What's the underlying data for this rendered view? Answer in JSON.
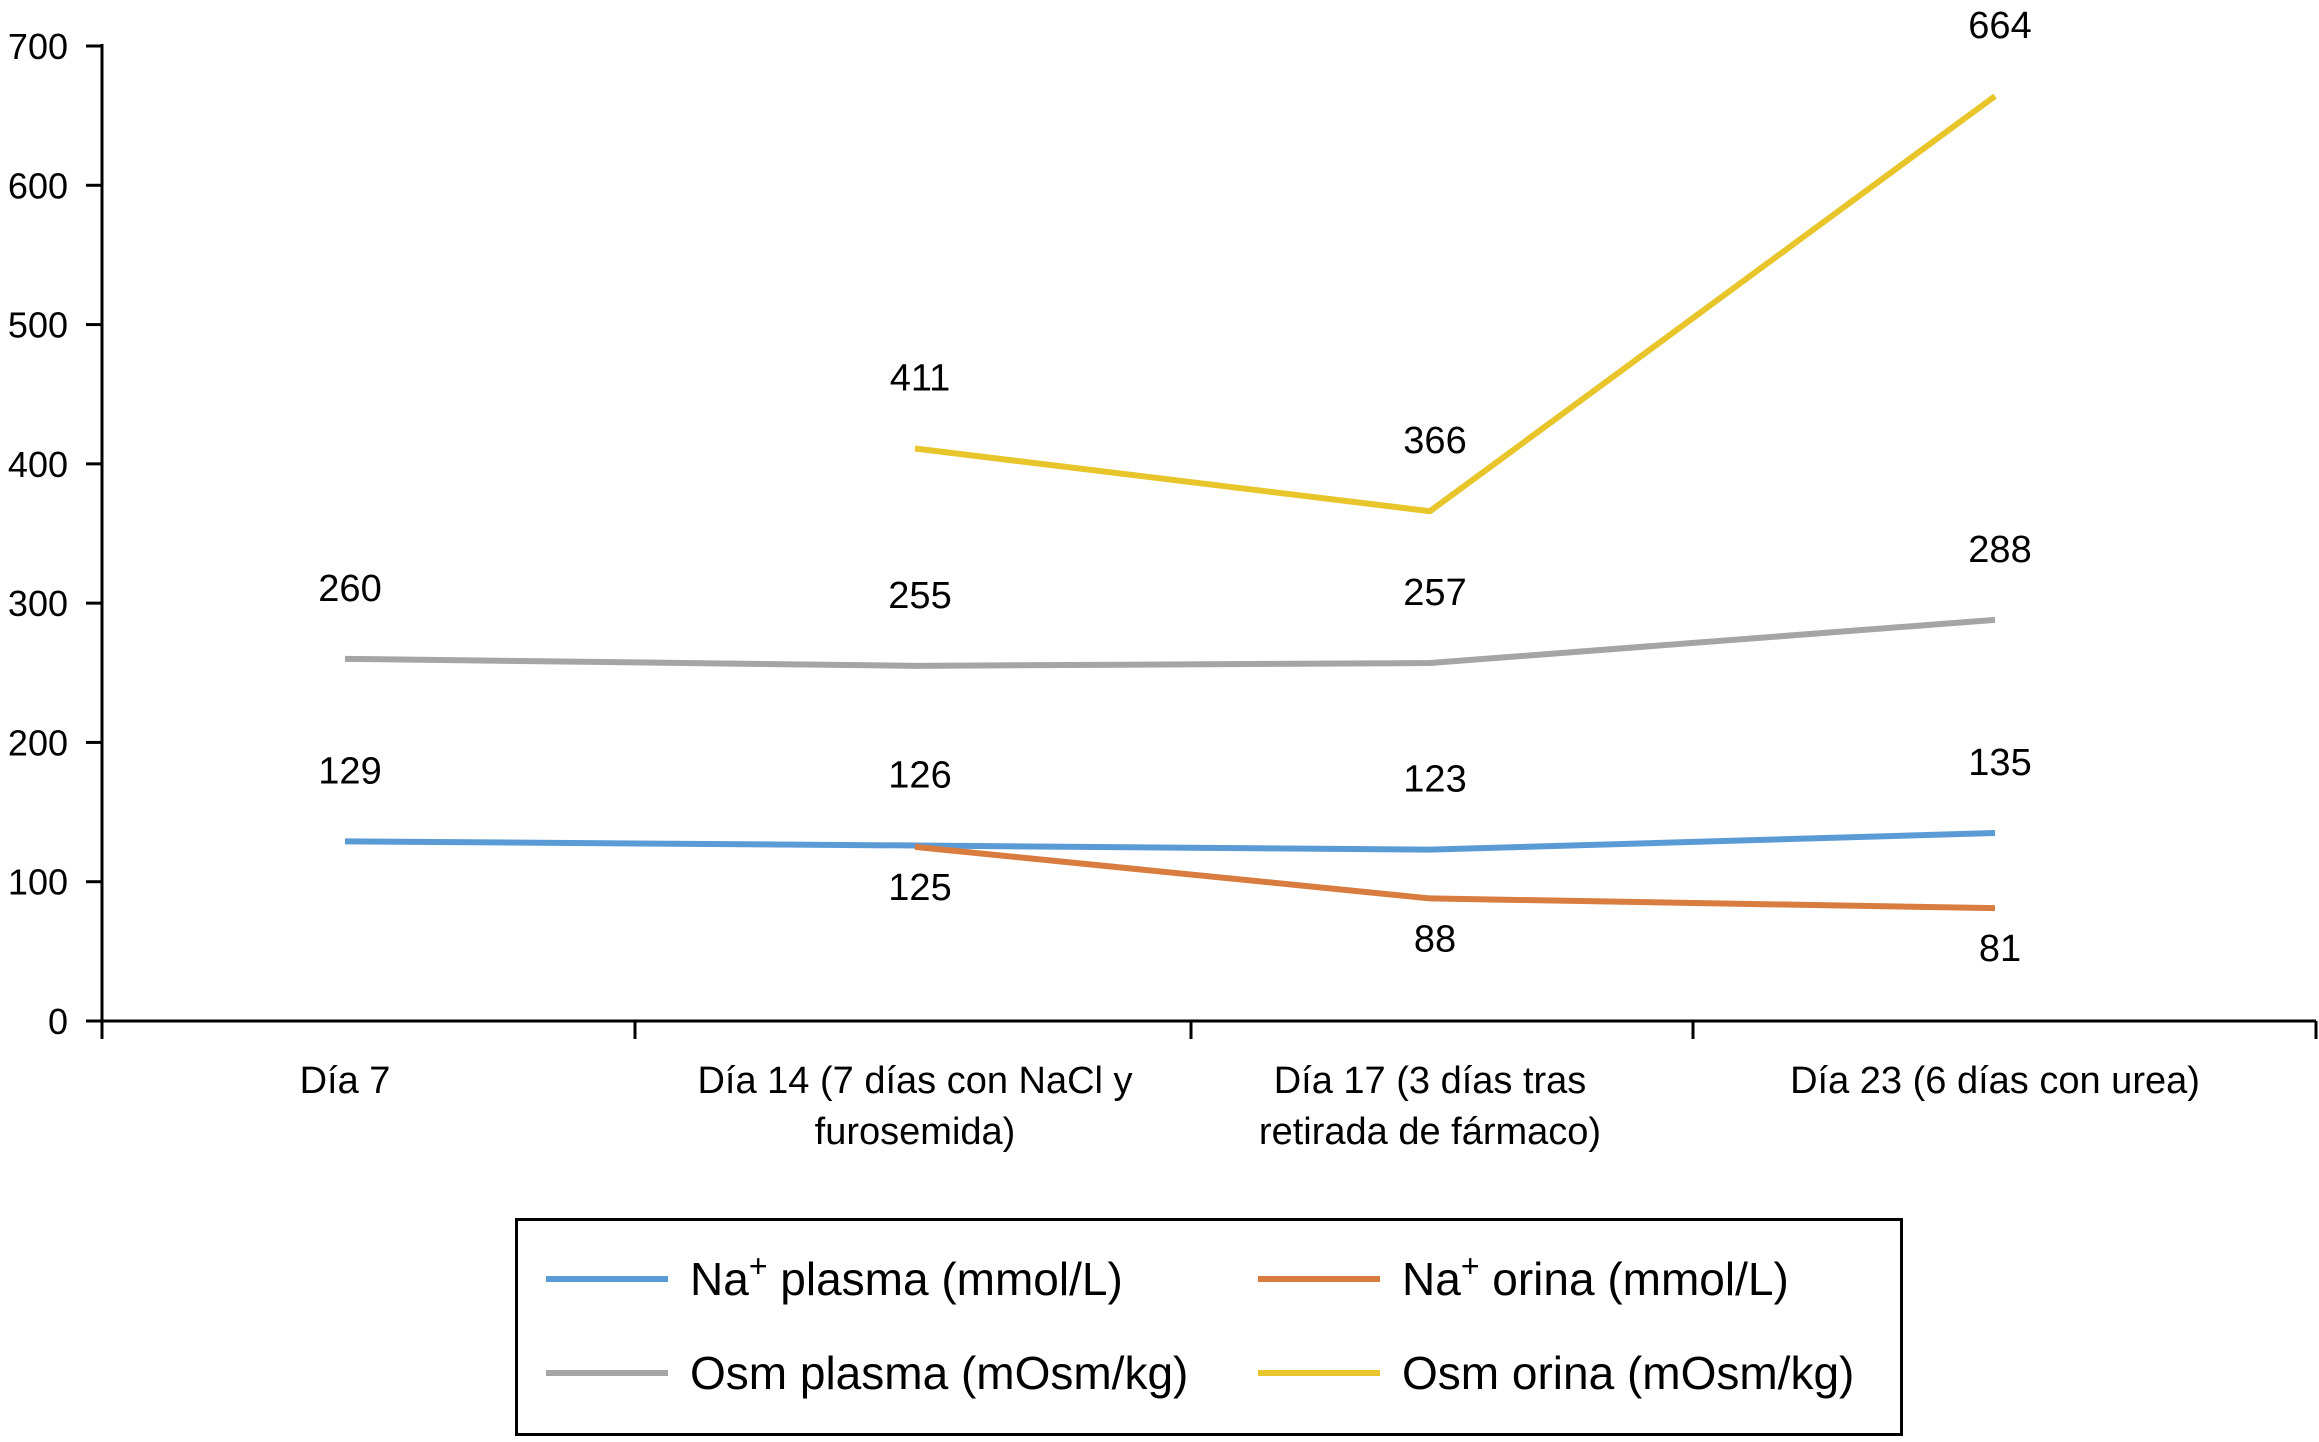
{
  "chart_data": {
    "type": "line",
    "categories": [
      [
        "Día 7"
      ],
      [
        "Día 14 (7 días con NaCl y",
        "furosemida)"
      ],
      [
        "Día 17 (3 días tras",
        "retirada de fármaco)"
      ],
      [
        "Día 23 (6 días con urea)"
      ]
    ],
    "ylim": [
      0,
      700
    ],
    "yticks": [
      0,
      100,
      200,
      300,
      400,
      500,
      600,
      700
    ],
    "grid": false,
    "legend_position": "bottom",
    "series": [
      {
        "key": "na_plasma",
        "name_main": "Na",
        "name_sup": "+",
        "name_rest": " plasma (mmol/L)",
        "color": "#5b9bd5",
        "values": [
          129,
          126,
          123,
          135
        ],
        "label_placement": "above"
      },
      {
        "key": "na_orina",
        "name_main": "Na",
        "name_sup": "+",
        "name_rest": " orina (mmol/L)",
        "color": "#d97c3f",
        "values": [
          null,
          125,
          88,
          81
        ],
        "label_placement": "below"
      },
      {
        "key": "osm_plasma",
        "name_main": "Osm plasma (mOsm/kg)",
        "name_sup": "",
        "name_rest": "",
        "color": "#a5a5a5",
        "values": [
          260,
          255,
          257,
          288
        ],
        "label_placement": "above"
      },
      {
        "key": "osm_orina",
        "name_main": "Osm orina (mOsm/kg)",
        "name_sup": "",
        "name_rest": "",
        "color": "#e8c62b",
        "values": [
          null,
          411,
          366,
          664
        ],
        "label_placement": "above"
      }
    ]
  }
}
